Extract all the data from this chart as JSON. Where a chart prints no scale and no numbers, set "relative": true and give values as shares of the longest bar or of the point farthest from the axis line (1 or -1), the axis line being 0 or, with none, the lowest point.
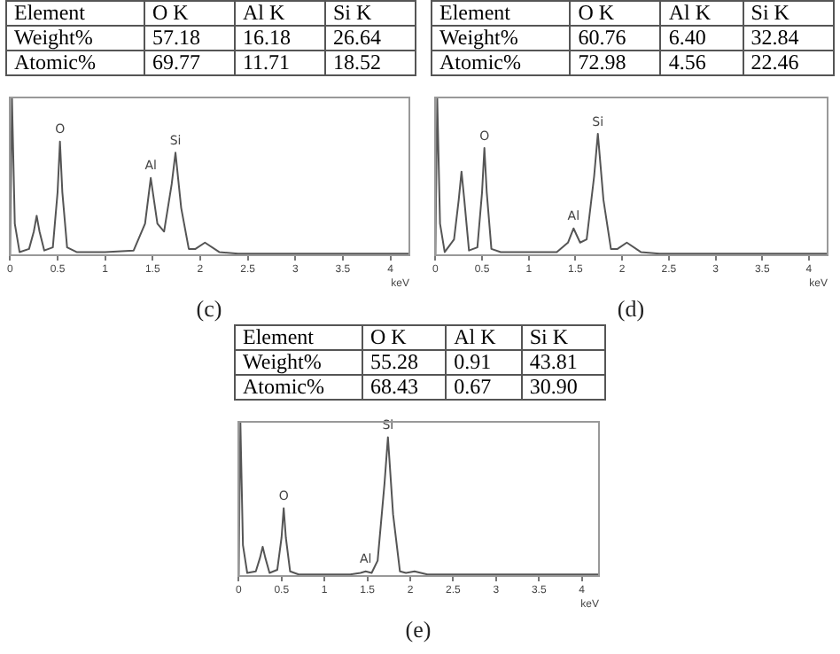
{
  "chart_data": [
    {
      "type": "other",
      "legend_title": "Element",
      "categories": [
        "O K",
        "Al K",
        "Si K"
      ],
      "data_labels": true,
      "series": [
        {
          "name": "Weight%",
          "values": [
            57.18,
            16.18,
            26.64
          ]
        },
        {
          "name": "Atomic%",
          "values": [
            69.77,
            11.71,
            18.52
          ]
        }
      ]
    },
    {
      "type": "line",
      "title": "(c)",
      "xlabel": "keV",
      "relative": true,
      "grid": false,
      "legend": false,
      "marker": "none",
      "line_style": "solid",
      "xlim": [
        0,
        4.2
      ],
      "xticks": [
        0,
        0.5,
        1,
        1.5,
        2,
        2.5,
        3,
        3.5,
        4
      ],
      "x": [
        0,
        0.02,
        0.05,
        0.1,
        0.2,
        0.25,
        0.28,
        0.31,
        0.36,
        0.45,
        0.5,
        0.525,
        0.55,
        0.6,
        0.7,
        1.0,
        1.3,
        1.42,
        1.48,
        1.55,
        1.62,
        1.7,
        1.74,
        1.8,
        1.88,
        1.95,
        2.05,
        2.2,
        2.4,
        3,
        4.2
      ],
      "series": [
        {
          "color": "#555555",
          "values": [
            0,
            1,
            0.2,
            0.02,
            0.04,
            0.15,
            0.25,
            0.15,
            0.03,
            0.05,
            0.4,
            0.72,
            0.4,
            0.05,
            0.02,
            0.02,
            0.03,
            0.2,
            0.49,
            0.2,
            0.15,
            0.45,
            0.65,
            0.3,
            0.04,
            0.04,
            0.08,
            0.02,
            0.01,
            0.01,
            0.01
          ]
        }
      ],
      "annotations": [
        {
          "text": "O",
          "x": 0.525,
          "y": 0.72
        },
        {
          "text": "Al",
          "x": 1.48,
          "y": 0.49
        },
        {
          "text": "Si",
          "x": 1.74,
          "y": 0.65
        }
      ]
    },
    {
      "type": "other",
      "legend_title": "Element",
      "categories": [
        "O K",
        "Al K",
        "Si K"
      ],
      "data_labels": true,
      "series": [
        {
          "name": "Weight%",
          "values": [
            60.76,
            6.4,
            32.84
          ],
          "value_labels": [
            "60.76",
            "6.40",
            "32.84"
          ]
        },
        {
          "name": "Atomic%",
          "values": [
            72.98,
            4.56,
            22.46
          ]
        }
      ]
    },
    {
      "type": "line",
      "title": "(d)",
      "xlabel": "keV",
      "relative": true,
      "grid": false,
      "legend": false,
      "marker": "none",
      "line_style": "solid",
      "xlim": [
        0,
        4.2
      ],
      "xticks": [
        0,
        0.5,
        1,
        1.5,
        2,
        2.5,
        3,
        3.5,
        4
      ],
      "x": [
        0,
        0.02,
        0.05,
        0.1,
        0.2,
        0.25,
        0.28,
        0.31,
        0.36,
        0.45,
        0.5,
        0.525,
        0.55,
        0.6,
        0.7,
        1.0,
        1.3,
        1.42,
        1.48,
        1.55,
        1.62,
        1.7,
        1.74,
        1.8,
        1.88,
        1.95,
        2.05,
        2.2,
        2.4,
        3,
        4.2
      ],
      "series": [
        {
          "color": "#555555",
          "values": [
            0,
            1,
            0.2,
            0.02,
            0.1,
            0.35,
            0.53,
            0.35,
            0.03,
            0.05,
            0.4,
            0.68,
            0.4,
            0.04,
            0.02,
            0.02,
            0.02,
            0.08,
            0.17,
            0.08,
            0.1,
            0.5,
            0.77,
            0.35,
            0.04,
            0.04,
            0.08,
            0.02,
            0.01,
            0.01,
            0.01
          ]
        }
      ],
      "annotations": [
        {
          "text": "O",
          "x": 0.525,
          "y": 0.68
        },
        {
          "text": "Al",
          "x": 1.48,
          "y": 0.17
        },
        {
          "text": "Si",
          "x": 1.74,
          "y": 0.77
        }
      ]
    },
    {
      "type": "other",
      "legend_title": "Element",
      "categories": [
        "O K",
        "Al K",
        "Si K"
      ],
      "data_labels": true,
      "series": [
        {
          "name": "Weight%",
          "values": [
            55.28,
            0.91,
            43.81
          ]
        },
        {
          "name": "Atomic%",
          "values": [
            68.43,
            0.67,
            30.9
          ],
          "value_labels": [
            "68.43",
            "0.67",
            "30.90"
          ]
        }
      ]
    },
    {
      "type": "line",
      "title": "(e)",
      "xlabel": "keV",
      "relative": true,
      "grid": false,
      "legend": false,
      "marker": "none",
      "line_style": "solid",
      "xlim": [
        0,
        4.2
      ],
      "xticks": [
        0,
        0.5,
        1,
        1.5,
        2,
        2.5,
        3,
        3.5,
        4
      ],
      "x": [
        0,
        0.02,
        0.05,
        0.1,
        0.2,
        0.25,
        0.28,
        0.31,
        0.36,
        0.45,
        0.5,
        0.525,
        0.55,
        0.6,
        0.7,
        1.0,
        1.3,
        1.42,
        1.48,
        1.55,
        1.62,
        1.7,
        1.74,
        1.8,
        1.88,
        1.95,
        2.05,
        2.2,
        2.4,
        3,
        4.2
      ],
      "series": [
        {
          "color": "#555555",
          "values": [
            0,
            1,
            0.2,
            0.02,
            0.03,
            0.12,
            0.19,
            0.12,
            0.02,
            0.04,
            0.25,
            0.44,
            0.25,
            0.03,
            0.01,
            0.01,
            0.01,
            0.02,
            0.03,
            0.02,
            0.1,
            0.6,
            0.9,
            0.4,
            0.03,
            0.02,
            0.03,
            0.01,
            0.01,
            0.01,
            0.01
          ]
        }
      ],
      "annotations": [
        {
          "text": "O",
          "x": 0.525,
          "y": 0.44
        },
        {
          "text": "Al",
          "x": 1.48,
          "y": 0.03
        },
        {
          "text": "Si",
          "x": 1.74,
          "y": 0.9
        }
      ]
    }
  ]
}
